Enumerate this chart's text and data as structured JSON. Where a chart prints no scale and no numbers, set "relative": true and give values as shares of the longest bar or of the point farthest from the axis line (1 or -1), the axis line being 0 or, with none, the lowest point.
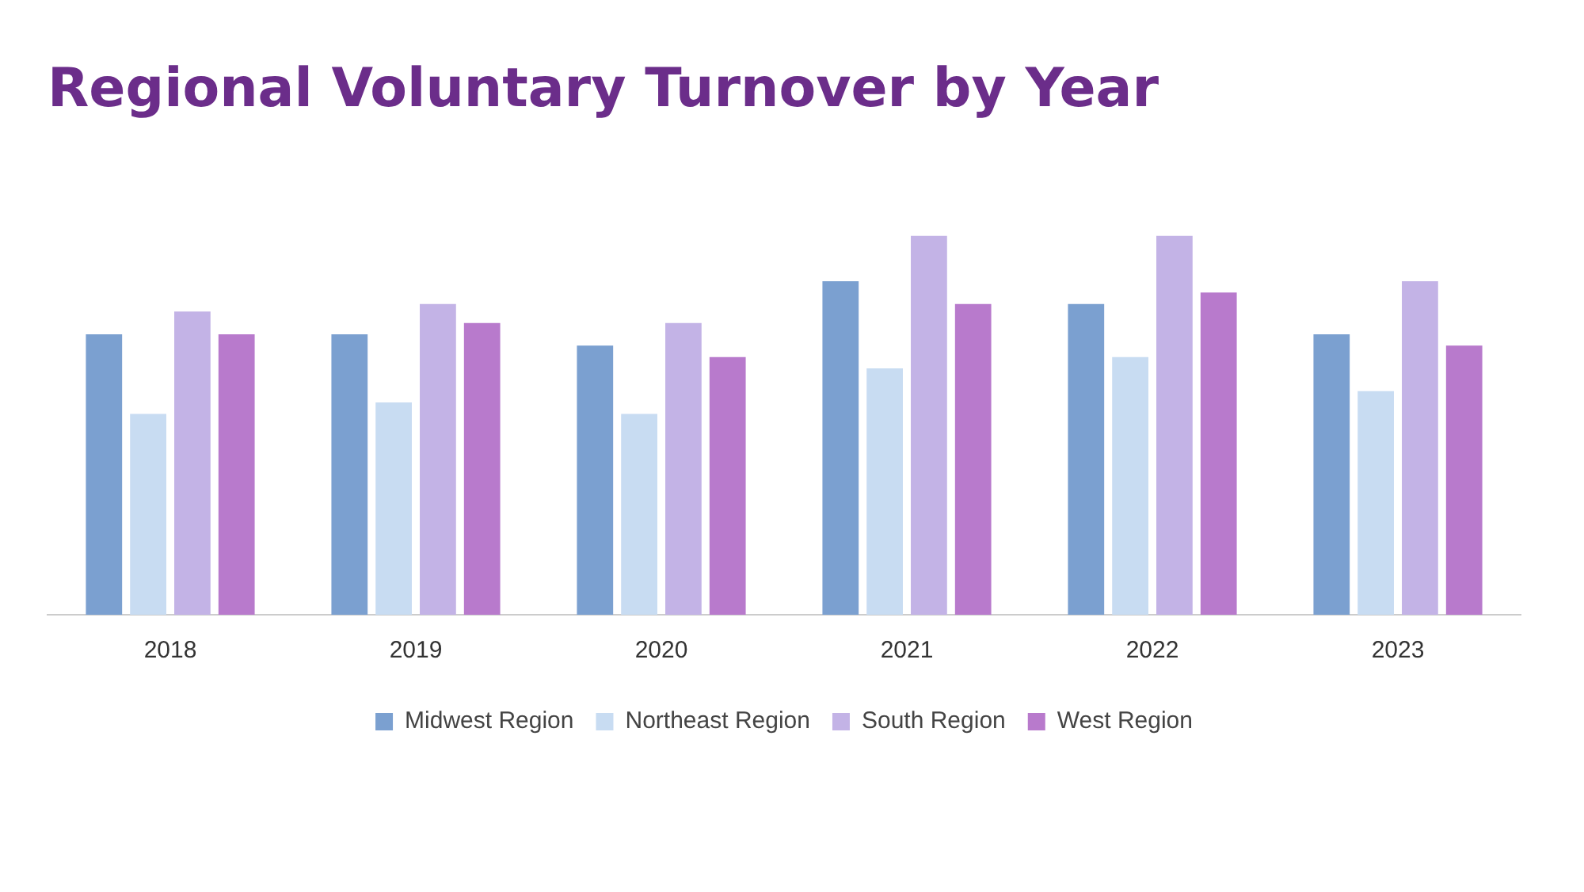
{
  "chart_data": {
    "type": "bar",
    "title": "Regional Voluntary Turnover by Year",
    "relative": true,
    "categories": [
      "2018",
      "2019",
      "2020",
      "2021",
      "2022",
      "2023"
    ],
    "series": [
      {
        "name": "Midwest Region",
        "color": "#7ba0d0",
        "values": [
          0.74,
          0.74,
          0.71,
          0.88,
          0.82,
          0.74
        ]
      },
      {
        "name": "Northeast Region",
        "color": "#c8dcf2",
        "values": [
          0.53,
          0.56,
          0.53,
          0.65,
          0.68,
          0.59
        ]
      },
      {
        "name": "South Region",
        "color": "#c3b3e6",
        "values": [
          0.8,
          0.82,
          0.77,
          1,
          1,
          0.88
        ]
      },
      {
        "name": "West Region",
        "color": "#b87acc",
        "values": [
          0.74,
          0.77,
          0.68,
          0.82,
          0.85,
          0.71
        ]
      }
    ],
    "grid": false,
    "legend": "bottom"
  }
}
